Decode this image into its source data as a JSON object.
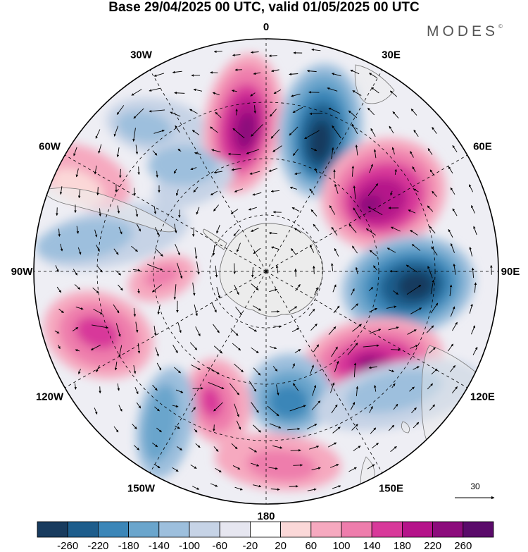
{
  "title": "Base 29/04/2025 00 UTC, valid 01/05/2025 00 UTC",
  "logo": "MODES",
  "logo_mark": "©",
  "longitude_labels": [
    "0",
    "30E",
    "60E",
    "90E",
    "120E",
    "150E",
    "180",
    "150W",
    "120W",
    "90W",
    "60W",
    "30W"
  ],
  "reference_vector": {
    "label": "30"
  },
  "colorbar": {
    "labels": [
      "-260",
      "-220",
      "-180",
      "-140",
      "-100",
      "-60",
      "-20",
      "20",
      "60",
      "100",
      "140",
      "180",
      "220",
      "260"
    ],
    "colors": [
      "#183b5e",
      "#1d5d8c",
      "#3b86b8",
      "#6aa5cc",
      "#9dbfdd",
      "#c6d3e6",
      "#e6e6f0",
      "#ffffff",
      "#fbd8d8",
      "#f6a9bf",
      "#ee7dac",
      "#d8399a",
      "#b5138a",
      "#8c0b7c",
      "#5a0a6a"
    ]
  },
  "colors": {
    "land": "#ececec",
    "frame": "#000000"
  }
}
